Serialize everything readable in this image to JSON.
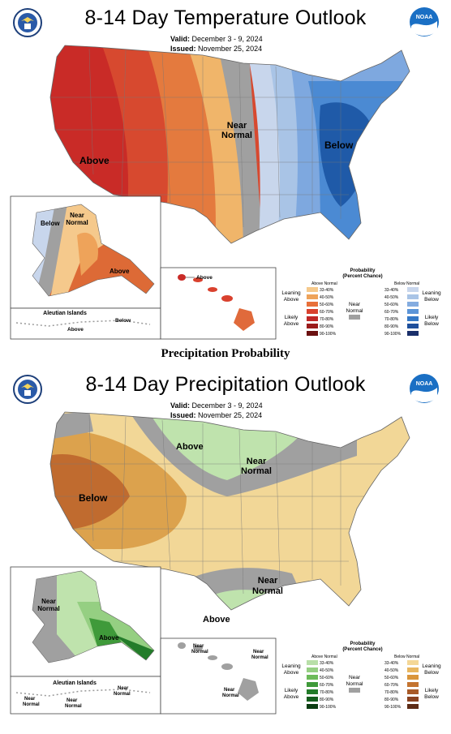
{
  "temp": {
    "title": "8-14 Day Temperature Outlook",
    "valid_label": "Valid:",
    "valid_value": "December 3 - 9, 2024",
    "issued_label": "Issued:",
    "issued_value": "November 25, 2024",
    "labels": {
      "above": "Above",
      "near_normal_1": "Near",
      "near_normal_2": "Normal",
      "below": "Below",
      "ak_below": "Below",
      "ak_near_1": "Near",
      "ak_near_2": "Normal",
      "ak_above": "Above",
      "aleutian": "Aleutian Islands",
      "aleutian_below": "Below",
      "aleutian_above": "Above",
      "hi_above": "Above"
    },
    "legend": {
      "title": "Probability",
      "subtitle": "(Percent Chance)",
      "above_normal": "Above Normal",
      "below_normal": "Below Normal",
      "leaning_above_1": "Leaning",
      "leaning_above_2": "Above",
      "likely_above_1": "Likely",
      "likely_above_2": "Above",
      "near_1": "Near",
      "near_2": "Normal",
      "leaning_below_1": "Leaning",
      "leaning_below_2": "Below",
      "likely_below_1": "Likely",
      "likely_below_2": "Below",
      "ranges": [
        "33-40%",
        "40-50%",
        "50-60%",
        "60-70%",
        "70-80%",
        "80-90%",
        "90-100%"
      ],
      "above_colors": [
        "#f5c98c",
        "#eea35a",
        "#e8703a",
        "#d9412e",
        "#bf2727",
        "#9b1b1b",
        "#6b1010"
      ],
      "below_colors": [
        "#c8d6ec",
        "#a9c4e6",
        "#84ace0",
        "#5c95d8",
        "#3578c6",
        "#1e4f9c",
        "#1a2f6a"
      ],
      "near_color": "#a0a0a0"
    }
  },
  "separator": "Precipitation Probability",
  "precip": {
    "title": "8-14 Day Precipitation Outlook",
    "valid_label": "Valid:",
    "valid_value": "December 3 - 9, 2024",
    "issued_label": "Issued:",
    "issued_value": "November 25, 2024",
    "labels": {
      "above_north": "Above",
      "near_ne_1": "Near",
      "near_ne_2": "Normal",
      "below_west": "Below",
      "near_south_1": "Near",
      "near_south_2": "Normal",
      "above_se": "Above",
      "ak_near_1": "Near",
      "ak_near_2": "Normal",
      "ak_above": "Above",
      "aleutian": "Aleutian Islands",
      "al_near_a1": "Near",
      "al_near_a2": "Normal",
      "al_near_b1": "Near",
      "al_near_b2": "Normal",
      "al_near_c1": "Near",
      "al_near_c2": "Normal",
      "hi_near_a1": "Near",
      "hi_near_a2": "Normal",
      "hi_near_b1": "Near",
      "hi_near_b2": "Normal",
      "hi_near_c1": "Near",
      "hi_near_c2": "Normal"
    },
    "legend": {
      "title": "Probability",
      "subtitle": "(Percent Chance)",
      "above_normal": "Above Normal",
      "below_normal": "Below Normal",
      "leaning_above_1": "Leaning",
      "leaning_above_2": "Above",
      "likely_above_1": "Likely",
      "likely_above_2": "Above",
      "near_1": "Near",
      "near_2": "Normal",
      "leaning_below_1": "Leaning",
      "leaning_below_2": "Below",
      "likely_below_1": "Likely",
      "likely_below_2": "Below",
      "ranges": [
        "33-40%",
        "40-50%",
        "50-60%",
        "60-70%",
        "70-80%",
        "80-90%",
        "90-100%"
      ],
      "above_colors": [
        "#b8dfa8",
        "#95cf82",
        "#6dbb5a",
        "#3f9a3a",
        "#237c2a",
        "#145e1d",
        "#0b3d12"
      ],
      "below_colors": [
        "#f4d796",
        "#e8b65f",
        "#d9953b",
        "#c47430",
        "#a85a28",
        "#8a4220",
        "#5e2c16"
      ],
      "near_color": "#a0a0a0"
    }
  }
}
